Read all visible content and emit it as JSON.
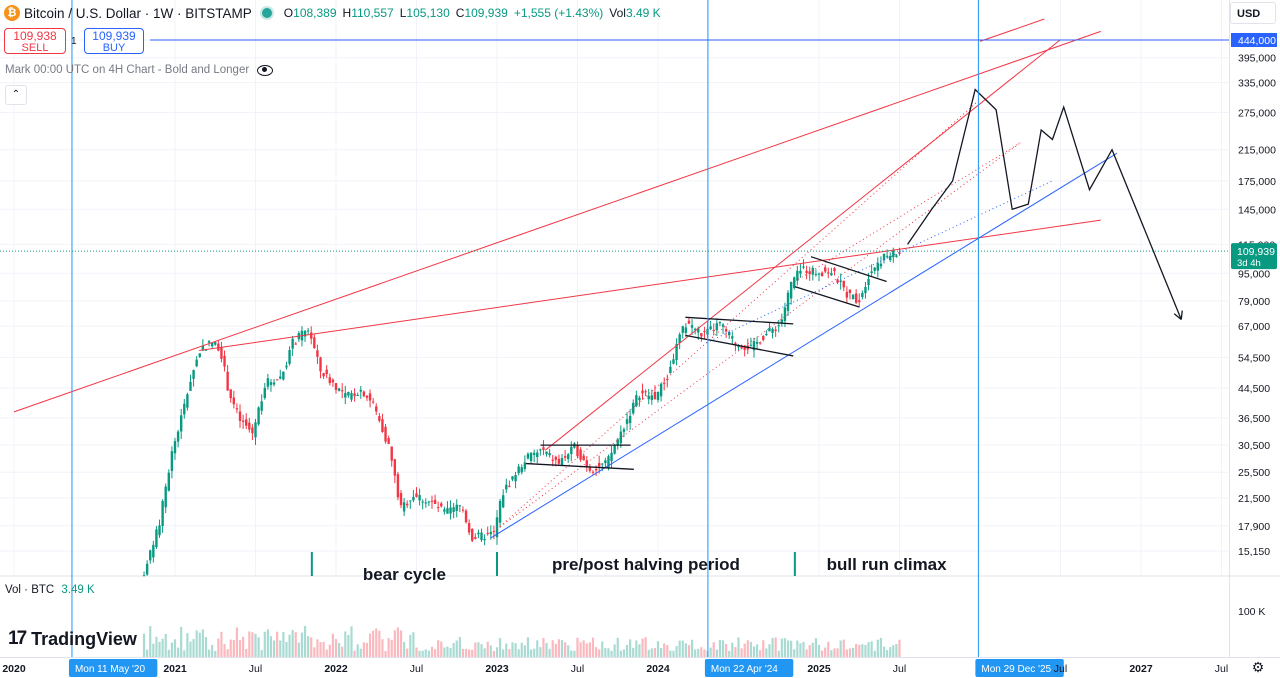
{
  "header": {
    "logo_glyph": "₿",
    "title": "Bitcoin / U.S. Dollar · 1W · BITSTAMP",
    "ohlc": [
      {
        "k": "O",
        "v": "108,389"
      },
      {
        "k": "H",
        "v": "110,557"
      },
      {
        "k": "L",
        "v": "105,130"
      },
      {
        "k": "C",
        "v": "109,939"
      },
      {
        "k": "",
        "v": "+1,555 (+1.43%)"
      },
      {
        "k": "Vol",
        "v": "3.49 K"
      }
    ]
  },
  "trade": {
    "sell_price": "109,938",
    "sell_label": "SELL",
    "buy_price": "109,939",
    "buy_label": "BUY",
    "spread": "1"
  },
  "note": "Mark 00:00 UTC on 4H Chart - Bold and Longer",
  "collapse_glyph": "⌃",
  "currency": "USD",
  "volume": {
    "label": "Vol · BTC",
    "value": "3.49 K",
    "axis_label": "100 K"
  },
  "brand": {
    "mark": "17",
    "name": "TradingView"
  },
  "colors": {
    "up": "#089981",
    "down": "#f23645",
    "vline": "#2196f3",
    "hline": "#2962ff"
  },
  "chart_data": {
    "type": "candlestick",
    "price_axis_labels": [
      "444,000",
      "395,000",
      "335,000",
      "275,000",
      "215,000",
      "175,000",
      "145,000",
      "115,000",
      "95,000",
      "79,000",
      "67,000",
      "54,500",
      "44,500",
      "36,500",
      "30,500",
      "25,500",
      "21,500",
      "17,900",
      "15,150"
    ],
    "price_axis_values": [
      444000,
      395000,
      335000,
      275000,
      215000,
      175000,
      145000,
      115000,
      95000,
      79000,
      67000,
      54500,
      44500,
      36500,
      30500,
      25500,
      21500,
      17900,
      15150
    ],
    "last_price_label": "109,939",
    "last_price_sub": "3d 4h",
    "hline_label": "444,000",
    "time_axis": [
      {
        "t": 2020.0,
        "label": "2020",
        "hl": false
      },
      {
        "t": 2020.36,
        "label": "Mon 11 May '20",
        "hl": true
      },
      {
        "t": 2021.0,
        "label": "2021",
        "hl": false
      },
      {
        "t": 2021.5,
        "label": "Jul",
        "hl": false
      },
      {
        "t": 2022.0,
        "label": "2022",
        "hl": false
      },
      {
        "t": 2022.5,
        "label": "Jul",
        "hl": false
      },
      {
        "t": 2023.0,
        "label": "2023",
        "hl": false
      },
      {
        "t": 2023.5,
        "label": "Jul",
        "hl": false
      },
      {
        "t": 2024.0,
        "label": "2024",
        "hl": false
      },
      {
        "t": 2024.31,
        "label": "Mon 22 Apr '24",
        "hl": true
      },
      {
        "t": 2025.0,
        "label": "2025",
        "hl": false
      },
      {
        "t": 2025.5,
        "label": "Jul",
        "hl": false
      },
      {
        "t": 2025.99,
        "label": "Mon 29 Dec '25",
        "hl": true
      },
      {
        "t": 2026.5,
        "label": "Jul",
        "hl": false
      },
      {
        "t": 2027.0,
        "label": "2027",
        "hl": false
      },
      {
        "t": 2027.5,
        "label": "Jul",
        "hl": false
      }
    ],
    "vertical_markers": [
      2020.36,
      2024.31,
      2025.99
    ],
    "horizontal_marker": 444000,
    "price_path": [
      [
        2020.75,
        11000
      ],
      [
        2020.85,
        14000
      ],
      [
        2020.92,
        18000
      ],
      [
        2021.0,
        29000
      ],
      [
        2021.08,
        40000
      ],
      [
        2021.12,
        48000
      ],
      [
        2021.18,
        58000
      ],
      [
        2021.25,
        60000
      ],
      [
        2021.3,
        58000
      ],
      [
        2021.35,
        44000
      ],
      [
        2021.42,
        36000
      ],
      [
        2021.5,
        33000
      ],
      [
        2021.58,
        46000
      ],
      [
        2021.68,
        48000
      ],
      [
        2021.75,
        60000
      ],
      [
        2021.85,
        66000
      ],
      [
        2021.92,
        50000
      ],
      [
        2022.0,
        46000
      ],
      [
        2022.08,
        42000
      ],
      [
        2022.18,
        44000
      ],
      [
        2022.25,
        40000
      ],
      [
        2022.35,
        30000
      ],
      [
        2022.42,
        20000
      ],
      [
        2022.5,
        22000
      ],
      [
        2022.6,
        21000
      ],
      [
        2022.7,
        19500
      ],
      [
        2022.8,
        20500
      ],
      [
        2022.86,
        16500
      ],
      [
        2022.95,
        16800
      ],
      [
        2023.0,
        17000
      ],
      [
        2023.05,
        22000
      ],
      [
        2023.1,
        24000
      ],
      [
        2023.2,
        28000
      ],
      [
        2023.3,
        29500
      ],
      [
        2023.4,
        27000
      ],
      [
        2023.5,
        30000
      ],
      [
        2023.6,
        26000
      ],
      [
        2023.7,
        27000
      ],
      [
        2023.8,
        34000
      ],
      [
        2023.9,
        43000
      ],
      [
        2024.0,
        42000
      ],
      [
        2024.08,
        48000
      ],
      [
        2024.15,
        62000
      ],
      [
        2024.2,
        69000
      ],
      [
        2024.3,
        63000
      ],
      [
        2024.4,
        68000
      ],
      [
        2024.5,
        60000
      ],
      [
        2024.6,
        58000
      ],
      [
        2024.68,
        63000
      ],
      [
        2024.78,
        68000
      ],
      [
        2024.85,
        90000
      ],
      [
        2024.92,
        98000
      ],
      [
        2025.0,
        96000
      ],
      [
        2025.1,
        96000
      ],
      [
        2025.2,
        82000
      ],
      [
        2025.27,
        80000
      ],
      [
        2025.33,
        95000
      ],
      [
        2025.4,
        104000
      ],
      [
        2025.45,
        107000
      ],
      [
        2025.5,
        108000
      ]
    ],
    "volume_scale_max": 100,
    "regions": [
      {
        "from": 2021.85,
        "to": 2023.0,
        "label": "bear cycle"
      },
      {
        "from": 2023.0,
        "to": 2024.85,
        "label": "pre/post halving period"
      },
      {
        "from": 2024.85,
        "to": 2025.99,
        "label": "bull run climax"
      }
    ],
    "projection": [
      [
        2025.55,
        115000
      ],
      [
        2025.7,
        145000
      ],
      [
        2025.83,
        175000
      ],
      [
        2025.97,
        320000
      ],
      [
        2026.1,
        280000
      ],
      [
        2026.2,
        145000
      ],
      [
        2026.3,
        150000
      ],
      [
        2026.38,
        245000
      ],
      [
        2026.45,
        230000
      ],
      [
        2026.52,
        285000
      ],
      [
        2026.68,
        165000
      ],
      [
        2026.82,
        215000
      ],
      [
        2027.25,
        70000
      ]
    ],
    "red_lines": [
      [
        [
          2020.0,
          38000
        ],
        [
          2026.75,
          470000
        ]
      ],
      [
        [
          2021.15,
          57000
        ],
        [
          2026.75,
          135000
        ]
      ],
      [
        [
          2023.3,
          29500
        ],
        [
          2026.5,
          445000
        ]
      ],
      [
        [
          2026.0,
          440000
        ],
        [
          2026.4,
          510000
        ]
      ]
    ],
    "red_dotted": [
      [
        [
          2023.0,
          17500
        ],
        [
          2026.0,
          300000
        ]
      ],
      [
        [
          2023.0,
          17500
        ],
        [
          2026.25,
          225000
        ]
      ],
      [
        [
          2024.85,
          90000
        ],
        [
          2026.25,
          225000
        ]
      ]
    ],
    "blue_lines": [
      [
        [
          2022.96,
          16500
        ],
        [
          2026.85,
          210000
        ]
      ]
    ],
    "blue_dotted": [
      [
        [
          2024.3,
          60000
        ],
        [
          2026.45,
          175000
        ]
      ]
    ],
    "black_lines": [
      [
        [
          2023.27,
          30500
        ],
        [
          2023.83,
          30500
        ]
      ],
      [
        [
          2023.18,
          27000
        ],
        [
          2023.85,
          26000
        ]
      ],
      [
        [
          2024.17,
          71000
        ],
        [
          2024.84,
          68000
        ]
      ],
      [
        [
          2024.17,
          63000
        ],
        [
          2024.84,
          55000
        ]
      ],
      [
        [
          2024.95,
          106000
        ],
        [
          2025.42,
          90000
        ]
      ],
      [
        [
          2024.85,
          87000
        ],
        [
          2025.25,
          76000
        ]
      ]
    ]
  }
}
